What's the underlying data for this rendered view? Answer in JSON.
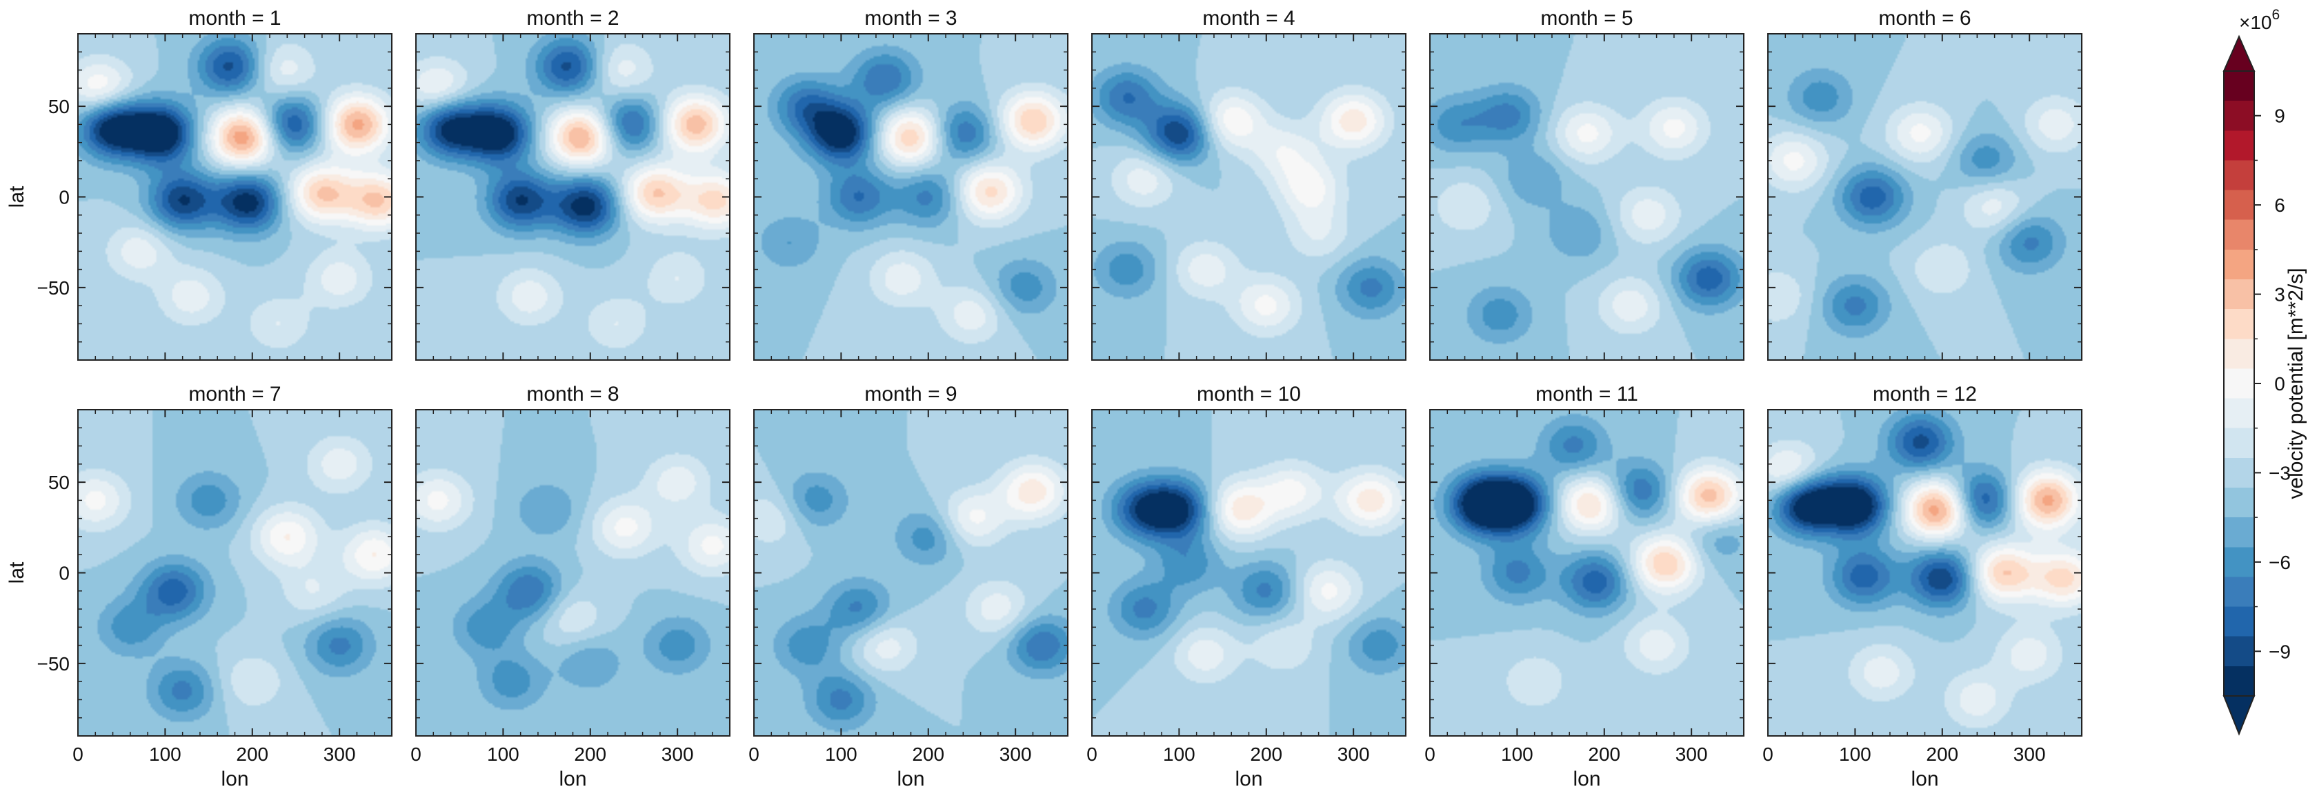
{
  "chart_data": {
    "type": "heatmap",
    "description_kind": "faceted filled-contour maps",
    "facet_variable": "month",
    "facets": [
      {
        "title": "month = 1",
        "month": 1
      },
      {
        "title": "month = 2",
        "month": 2
      },
      {
        "title": "month = 3",
        "month": 3
      },
      {
        "title": "month = 4",
        "month": 4
      },
      {
        "title": "month = 5",
        "month": 5
      },
      {
        "title": "month = 6",
        "month": 6
      },
      {
        "title": "month = 7",
        "month": 7
      },
      {
        "title": "month = 8",
        "month": 8
      },
      {
        "title": "month = 9",
        "month": 9
      },
      {
        "title": "month = 10",
        "month": 10
      },
      {
        "title": "month = 11",
        "month": 11
      },
      {
        "title": "month = 12",
        "month": 12
      }
    ],
    "layout": {
      "rows": 2,
      "cols": 6
    },
    "xlabel": "lon",
    "ylabel": "lat",
    "xlim": [
      0,
      360
    ],
    "ylim": [
      -90,
      90
    ],
    "xticks": [
      0,
      100,
      200,
      300
    ],
    "xtick_labels": [
      "0",
      "100",
      "200",
      "300"
    ],
    "yticks": [
      50,
      0,
      -50
    ],
    "ytick_labels": [
      "50",
      "0",
      "−50"
    ],
    "colorbar": {
      "label": "velocity potential [m**2/s]",
      "multiplier": "×10",
      "exponent": "6",
      "vmin": -10.5,
      "vmax": 10.5,
      "level_step": 1.5,
      "extend": "both",
      "ticks": [
        9,
        6,
        3,
        0,
        -3,
        -6,
        -9
      ],
      "tick_labels": [
        "9",
        "6",
        "3",
        "0",
        "−3",
        "−6",
        "−9"
      ],
      "colors": [
        "#053061",
        "#144b87",
        "#2166ac",
        "#3a7dba",
        "#4393c3",
        "#6aabd2",
        "#92c5de",
        "#b3d5e8",
        "#d1e5f0",
        "#e6eff4",
        "#f7f7f7",
        "#f9ebe2",
        "#fddbc7",
        "#f8c1a6",
        "#f4a582",
        "#e8866a",
        "#d6604d",
        "#c43f3c",
        "#b2182b",
        "#8c0d25",
        "#67001f"
      ]
    },
    "blobs": [
      [
        [
          40,
          38,
          -11
        ],
        [
          95,
          35,
          -12
        ],
        [
          190,
          33,
          12
        ],
        [
          245,
          40,
          -8
        ],
        [
          320,
          40,
          11
        ],
        [
          175,
          72,
          -8
        ],
        [
          120,
          -2,
          -9
        ],
        [
          195,
          -3,
          -10
        ],
        [
          280,
          2,
          9
        ],
        [
          345,
          -2,
          9
        ],
        [
          25,
          60,
          6
        ],
        [
          235,
          70,
          4
        ],
        [
          70,
          -30,
          4
        ],
        [
          130,
          -55,
          4
        ],
        [
          230,
          -70,
          3
        ],
        [
          300,
          -45,
          4
        ]
      ],
      [
        [
          40,
          38,
          -10
        ],
        [
          95,
          35,
          -11
        ],
        [
          190,
          33,
          11
        ],
        [
          245,
          40,
          -7
        ],
        [
          320,
          40,
          10
        ],
        [
          175,
          72,
          -8
        ],
        [
          120,
          -2,
          -9
        ],
        [
          195,
          -5,
          -10
        ],
        [
          275,
          2,
          9
        ],
        [
          345,
          -2,
          8
        ],
        [
          25,
          60,
          5
        ],
        [
          235,
          70,
          4
        ],
        [
          130,
          -55,
          4
        ],
        [
          230,
          -70,
          3
        ],
        [
          300,
          -45,
          3
        ]
      ],
      [
        [
          60,
          50,
          -6
        ],
        [
          100,
          35,
          -11
        ],
        [
          180,
          33,
          9
        ],
        [
          240,
          35,
          -6
        ],
        [
          320,
          42,
          9
        ],
        [
          150,
          65,
          -6
        ],
        [
          120,
          0,
          -6
        ],
        [
          200,
          0,
          -5
        ],
        [
          270,
          3,
          8
        ],
        [
          170,
          -45,
          4
        ],
        [
          250,
          -65,
          4
        ],
        [
          310,
          -50,
          -4
        ],
        [
          40,
          -25,
          -3
        ]
      ],
      [
        [
          40,
          55,
          -6
        ],
        [
          100,
          35,
          -9
        ],
        [
          160,
          42,
          6
        ],
        [
          220,
          25,
          4
        ],
        [
          300,
          42,
          7
        ],
        [
          250,
          5,
          5
        ],
        [
          130,
          -40,
          4
        ],
        [
          200,
          -60,
          5
        ],
        [
          40,
          -40,
          -4
        ],
        [
          320,
          -50,
          -5
        ],
        [
          260,
          -20,
          3
        ],
        [
          60,
          10,
          4
        ]
      ],
      [
        [
          30,
          40,
          -4
        ],
        [
          90,
          45,
          -5
        ],
        [
          180,
          35,
          5
        ],
        [
          280,
          38,
          5
        ],
        [
          320,
          -45,
          -7
        ],
        [
          250,
          -10,
          4
        ],
        [
          170,
          -20,
          -3
        ],
        [
          40,
          -5,
          3
        ],
        [
          120,
          10,
          -3
        ],
        [
          230,
          -60,
          4
        ],
        [
          80,
          -65,
          -4
        ]
      ],
      [
        [
          30,
          20,
          5
        ],
        [
          60,
          55,
          -4
        ],
        [
          120,
          0,
          -7
        ],
        [
          100,
          -60,
          -5
        ],
        [
          175,
          35,
          5
        ],
        [
          250,
          20,
          -4
        ],
        [
          300,
          -25,
          -5
        ],
        [
          330,
          40,
          4
        ],
        [
          200,
          -40,
          3
        ],
        [
          260,
          -5,
          4
        ],
        [
          10,
          -55,
          3
        ]
      ],
      [
        [
          20,
          40,
          5
        ],
        [
          110,
          -10,
          -7
        ],
        [
          150,
          40,
          -4
        ],
        [
          200,
          -60,
          3
        ],
        [
          240,
          20,
          6
        ],
        [
          300,
          -40,
          -5
        ],
        [
          340,
          10,
          6
        ],
        [
          120,
          -65,
          -5
        ],
        [
          60,
          -30,
          -4
        ],
        [
          270,
          -10,
          3
        ],
        [
          300,
          60,
          4
        ]
      ],
      [
        [
          25,
          40,
          5
        ],
        [
          130,
          -10,
          -6
        ],
        [
          150,
          35,
          -3
        ],
        [
          200,
          -50,
          -3
        ],
        [
          240,
          25,
          5
        ],
        [
          300,
          -40,
          -4
        ],
        [
          340,
          15,
          5
        ],
        [
          110,
          -60,
          -4
        ],
        [
          80,
          -30,
          -4
        ],
        [
          300,
          50,
          4
        ],
        [
          180,
          -25,
          3
        ]
      ],
      [
        [
          20,
          30,
          3
        ],
        [
          70,
          40,
          -4
        ],
        [
          120,
          -20,
          -5
        ],
        [
          200,
          20,
          -4
        ],
        [
          250,
          30,
          5
        ],
        [
          320,
          45,
          7
        ],
        [
          150,
          -40,
          4
        ],
        [
          330,
          -40,
          -6
        ],
        [
          100,
          -70,
          -5
        ],
        [
          280,
          -20,
          4
        ],
        [
          60,
          -40,
          -4
        ]
      ],
      [
        [
          60,
          35,
          -8
        ],
        [
          100,
          35,
          -9
        ],
        [
          170,
          35,
          7
        ],
        [
          230,
          45,
          5
        ],
        [
          320,
          40,
          7
        ],
        [
          270,
          -10,
          5
        ],
        [
          110,
          5,
          -4
        ],
        [
          200,
          -10,
          -5
        ],
        [
          130,
          -45,
          4
        ],
        [
          60,
          -20,
          -5
        ],
        [
          330,
          -40,
          -4
        ],
        [
          220,
          -40,
          3
        ]
      ],
      [
        [
          60,
          38,
          -12
        ],
        [
          100,
          38,
          -11
        ],
        [
          185,
          38,
          8
        ],
        [
          240,
          45,
          -6
        ],
        [
          320,
          42,
          10
        ],
        [
          165,
          70,
          -5
        ],
        [
          100,
          0,
          -5
        ],
        [
          190,
          -5,
          -7
        ],
        [
          270,
          5,
          9
        ],
        [
          260,
          -40,
          4
        ],
        [
          330,
          20,
          -3
        ],
        [
          120,
          -60,
          3
        ]
      ],
      [
        [
          45,
          38,
          -12
        ],
        [
          100,
          37,
          -12
        ],
        [
          195,
          35,
          12
        ],
        [
          245,
          40,
          -8
        ],
        [
          320,
          40,
          11
        ],
        [
          175,
          72,
          -8
        ],
        [
          110,
          -2,
          -7
        ],
        [
          200,
          -3,
          -9
        ],
        [
          270,
          0,
          9
        ],
        [
          340,
          -3,
          8
        ],
        [
          25,
          55,
          6
        ],
        [
          130,
          -55,
          4
        ],
        [
          240,
          -70,
          4
        ],
        [
          300,
          -45,
          4
        ]
      ]
    ]
  }
}
